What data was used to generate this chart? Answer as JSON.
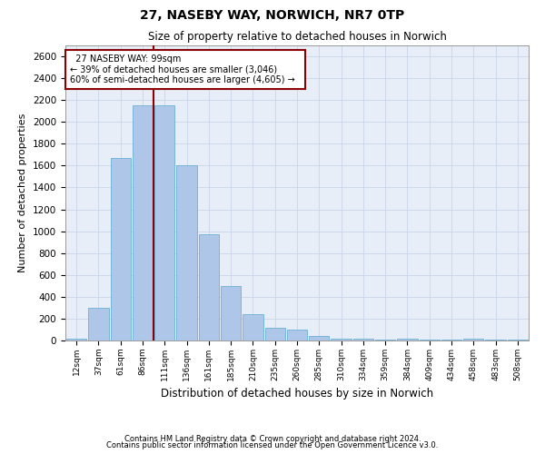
{
  "title1": "27, NASEBY WAY, NORWICH, NR7 0TP",
  "title2": "Size of property relative to detached houses in Norwich",
  "xlabel": "Distribution of detached houses by size in Norwich",
  "ylabel": "Number of detached properties",
  "annotation_line1": "27 NASEBY WAY: 99sqm",
  "annotation_line2": "← 39% of detached houses are smaller (3,046)",
  "annotation_line3": "60% of semi-detached houses are larger (4,605) →",
  "categories": [
    "12sqm",
    "37sqm",
    "61sqm",
    "86sqm",
    "111sqm",
    "136sqm",
    "161sqm",
    "185sqm",
    "210sqm",
    "235sqm",
    "260sqm",
    "285sqm",
    "310sqm",
    "334sqm",
    "359sqm",
    "384sqm",
    "409sqm",
    "434sqm",
    "458sqm",
    "483sqm",
    "508sqm"
  ],
  "values": [
    20,
    300,
    1670,
    2150,
    2150,
    1600,
    970,
    500,
    245,
    120,
    100,
    45,
    20,
    15,
    10,
    20,
    5,
    5,
    20,
    5,
    5
  ],
  "bar_color": "#aec6e8",
  "bar_edge_color": "#6baed6",
  "vline_color": "#8b0000",
  "vline_position": 3.5,
  "annotation_box_facecolor": "#ffffff",
  "annotation_box_edgecolor": "#8b0000",
  "ylim": [
    0,
    2700
  ],
  "yticks": [
    0,
    200,
    400,
    600,
    800,
    1000,
    1200,
    1400,
    1600,
    1800,
    2000,
    2200,
    2400,
    2600
  ],
  "grid_color": "#c8d4e8",
  "background_color": "#e8eef8",
  "fig_facecolor": "#ffffff",
  "footer1": "Contains HM Land Registry data © Crown copyright and database right 2024.",
  "footer2": "Contains public sector information licensed under the Open Government Licence v3.0."
}
